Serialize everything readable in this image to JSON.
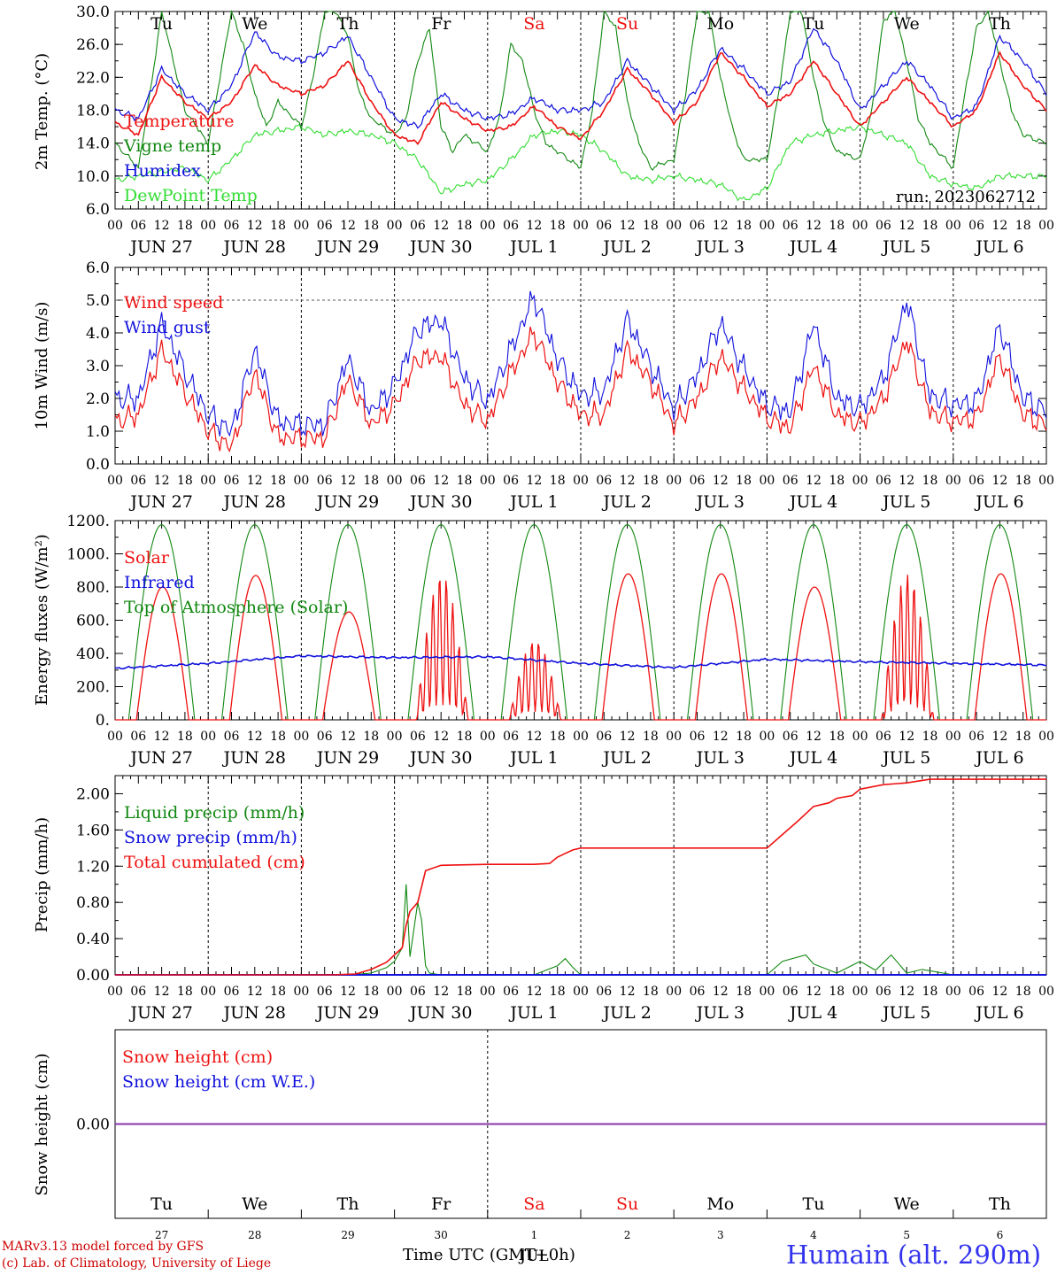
{
  "colors": {
    "red": "#ee1111",
    "green": "#118811",
    "blue": "#1111dd",
    "lightgreen": "#33dd33",
    "purple": "#8833aa",
    "axis": "#000000"
  },
  "days": {
    "dates": [
      "JUN 27",
      "JUN 28",
      "JUN 29",
      "JUN 30",
      "JUL  1",
      "JUL  2",
      "JUL  3",
      "JUL  4",
      "JUL  5",
      "JUL  6"
    ],
    "weekdays": [
      "Tu",
      "We",
      "Th",
      "Fr",
      "Sa",
      "Su",
      "Mo",
      "Tu",
      "We",
      "Th"
    ],
    "weekend_flags": [
      false,
      false,
      false,
      false,
      true,
      true,
      false,
      false,
      false,
      false
    ],
    "hour_labels": [
      "00",
      "06",
      "12",
      "18"
    ],
    "final_hour_label": "00",
    "day_numbers": [
      "27",
      "28",
      "29",
      "30",
      "1",
      "2",
      "3",
      "4",
      "5",
      "6"
    ],
    "month_label": "JUL"
  },
  "chart_data": [
    {
      "type": "line",
      "ylabel": "2m Temp. (°C)",
      "ylim": [
        6,
        30
      ],
      "yticks": [
        "6.0",
        "10.0",
        "14.0",
        "18.0",
        "22.0",
        "26.0",
        "30.0"
      ],
      "x_unit": "hours since JUN 27 00 UTC",
      "series_labels": [
        "Temperature",
        "Vigne temp",
        "Humidex",
        "DewPoint Temp"
      ],
      "annotation": "run: 2023062712",
      "series": [
        {
          "name": "Temperature",
          "color": "red",
          "x": [
            0,
            6,
            12,
            18,
            24,
            30,
            36,
            42,
            48,
            54,
            60,
            66,
            72,
            78,
            84,
            90,
            96,
            102,
            108,
            114,
            120,
            126,
            132,
            138,
            144,
            150,
            156,
            162,
            168,
            174,
            180,
            186,
            192,
            198,
            204,
            210,
            216,
            222,
            228,
            234,
            240
          ],
          "values": [
            16.5,
            15,
            22,
            19,
            17,
            19,
            23.5,
            21,
            20,
            21,
            24,
            19,
            15,
            14,
            19,
            17,
            15.5,
            16,
            18.5,
            16,
            14.5,
            18,
            23,
            20,
            16.5,
            19,
            25,
            22,
            18.5,
            20,
            24,
            20,
            16,
            19,
            22,
            19,
            16,
            18,
            25,
            21,
            18
          ]
        },
        {
          "name": "Vigne temp",
          "color": "green",
          "x": [
            0,
            6,
            9,
            12,
            15,
            18,
            24,
            27,
            30,
            33,
            36,
            39,
            42,
            48,
            51,
            54,
            57,
            60,
            63,
            66,
            72,
            75,
            78,
            81,
            84,
            87,
            90,
            96,
            99,
            102,
            105,
            108,
            111,
            114,
            120,
            123,
            126,
            129,
            132,
            135,
            138,
            144,
            147,
            150,
            153,
            156,
            159,
            162,
            168,
            171,
            174,
            177,
            180,
            183,
            186,
            192,
            195,
            198,
            201,
            204,
            207,
            210,
            216,
            219,
            222,
            225,
            228,
            231,
            234,
            240
          ],
          "values": [
            14,
            11,
            20,
            30,
            24,
            18,
            14,
            22,
            30,
            26,
            20,
            16,
            19,
            16,
            22,
            30,
            30,
            27,
            20,
            17,
            15,
            17,
            24,
            28,
            16,
            13,
            15,
            13,
            17,
            26,
            24,
            18,
            14,
            13,
            11,
            18,
            30,
            28,
            19,
            14,
            11,
            12,
            20,
            30,
            30,
            22,
            16,
            12,
            12,
            20,
            30,
            30,
            22,
            16,
            13,
            12,
            18,
            29,
            30,
            24,
            17,
            14,
            11,
            20,
            28,
            30,
            24,
            18,
            15,
            14
          ]
        },
        {
          "name": "Humidex",
          "color": "blue",
          "x": [
            0,
            6,
            12,
            18,
            24,
            30,
            36,
            42,
            48,
            54,
            60,
            66,
            72,
            78,
            84,
            90,
            96,
            102,
            108,
            114,
            120,
            126,
            132,
            138,
            144,
            150,
            156,
            162,
            168,
            174,
            180,
            186,
            192,
            198,
            204,
            210,
            216,
            222,
            228,
            234,
            240
          ],
          "values": [
            18,
            17,
            23,
            20,
            18,
            21,
            27.5,
            24.5,
            24,
            25,
            27,
            22,
            17,
            16,
            20,
            18,
            17,
            17.5,
            19.5,
            18,
            18,
            19,
            24,
            21,
            18,
            20.5,
            25.5,
            23,
            20,
            21.5,
            28,
            24,
            18,
            21,
            24,
            21,
            17,
            18.5,
            27,
            24,
            20
          ]
        },
        {
          "name": "DewPoint Temp",
          "color": "lightgreen",
          "x": [
            0,
            6,
            12,
            18,
            24,
            30,
            36,
            42,
            48,
            54,
            60,
            66,
            72,
            78,
            84,
            90,
            96,
            102,
            108,
            114,
            120,
            126,
            132,
            138,
            144,
            150,
            156,
            162,
            168,
            174,
            180,
            186,
            192,
            198,
            204,
            210,
            216,
            222,
            228,
            234,
            240
          ],
          "values": [
            9.5,
            10,
            10.5,
            11,
            9.5,
            12,
            15,
            15.5,
            16,
            15,
            15.5,
            15,
            14,
            12,
            8,
            9,
            9.5,
            12,
            15,
            15.5,
            15,
            13,
            10,
            9.5,
            10,
            9.5,
            9,
            7,
            8.5,
            14,
            15,
            15.5,
            16,
            15,
            14,
            10,
            9,
            8.5,
            10,
            10,
            10
          ]
        }
      ]
    },
    {
      "type": "line",
      "ylabel": "10m Wind (m/s)",
      "ylim": [
        0,
        6
      ],
      "yticks": [
        "0.0",
        "1.0",
        "2.0",
        "3.0",
        "4.0",
        "5.0",
        "6.0"
      ],
      "reference_line": 5,
      "series_labels": [
        "Wind speed",
        "Wind gust"
      ],
      "series": [
        {
          "name": "Wind speed",
          "color": "red",
          "x": [
            0,
            6,
            12,
            18,
            24,
            30,
            36,
            42,
            48,
            54,
            60,
            66,
            72,
            78,
            84,
            90,
            96,
            102,
            108,
            114,
            120,
            126,
            132,
            138,
            144,
            150,
            156,
            162,
            168,
            174,
            180,
            186,
            192,
            198,
            204,
            210,
            216,
            222,
            228,
            234,
            240
          ],
          "values": [
            1.3,
            1.5,
            3.5,
            2.2,
            1.0,
            0.5,
            2.8,
            0.8,
            0.8,
            0.8,
            2.6,
            1.2,
            1.8,
            3.2,
            3.3,
            1.8,
            1.3,
            2.8,
            4.0,
            2.5,
            1.5,
            1.5,
            3.5,
            2.5,
            1.2,
            2.0,
            3.3,
            2.3,
            1.4,
            1.1,
            3.0,
            1.5,
            1.2,
            2.0,
            3.8,
            1.6,
            1.3,
            1.4,
            3.3,
            1.5,
            1.2
          ]
        },
        {
          "name": "Wind gust",
          "color": "blue",
          "x": [
            0,
            6,
            12,
            18,
            24,
            30,
            36,
            42,
            48,
            54,
            60,
            66,
            72,
            78,
            84,
            90,
            96,
            102,
            108,
            114,
            120,
            126,
            132,
            138,
            144,
            150,
            156,
            162,
            168,
            174,
            180,
            186,
            192,
            198,
            204,
            210,
            216,
            222,
            228,
            234,
            240
          ],
          "values": [
            2.0,
            2.0,
            4.3,
            2.8,
            1.5,
            1.0,
            3.5,
            1.3,
            1.2,
            1.2,
            3.2,
            1.6,
            2.4,
            4.1,
            4.4,
            2.6,
            1.9,
            3.5,
            5.1,
            3.2,
            2.1,
            2.2,
            4.4,
            3.0,
            1.7,
            2.7,
            4.3,
            2.9,
            1.8,
            1.6,
            4.3,
            2.0,
            1.7,
            2.6,
            5.0,
            2.1,
            1.8,
            1.9,
            4.2,
            2.0,
            1.6
          ]
        }
      ]
    },
    {
      "type": "line",
      "ylabel": "Energy fluxes (W/m²)",
      "ylim": [
        0,
        1200
      ],
      "yticks": [
        "0.",
        "200.",
        "400.",
        "600.",
        "800.",
        "1000.",
        "1200."
      ],
      "series_labels": [
        "Solar",
        "Infrared",
        "Top of Atmosphere (Solar)"
      ],
      "toa_daily_peak": 1175,
      "sunrise_hour": 4.5,
      "sunset_hour": 19.5,
      "series": [
        {
          "name": "Solar",
          "color": "red",
          "daily_peaks": [
            800,
            870,
            650,
            880,
            480,
            880,
            880,
            800,
            880,
            880
          ]
        },
        {
          "name": "Infrared",
          "color": "blue",
          "x": [
            0,
            24,
            48,
            72,
            96,
            120,
            144,
            168,
            192,
            216,
            240
          ],
          "values": [
            310,
            340,
            385,
            375,
            380,
            340,
            315,
            365,
            350,
            340,
            330
          ]
        },
        {
          "name": "Top of Atmosphere (Solar)",
          "color": "green",
          "daily_peaks": [
            1175,
            1175,
            1175,
            1175,
            1175,
            1175,
            1175,
            1175,
            1175,
            1175
          ]
        }
      ]
    },
    {
      "type": "line",
      "ylabel": "Precip (mm/h)",
      "ylim": [
        0,
        2.2
      ],
      "yticks": [
        "0.00",
        "0.40",
        "0.80",
        "1.20",
        "1.60",
        "2.00"
      ],
      "series_labels": [
        "Liquid precip (mm/h)",
        "Snow precip (mm/h)",
        "Total cumulated (cm)"
      ],
      "series": [
        {
          "name": "Liquid precip (mm/h)",
          "color": "green",
          "x": [
            0,
            60,
            66,
            70,
            72,
            74,
            75,
            76,
            77,
            78,
            79,
            80,
            81,
            84,
            96,
            108,
            114,
            116,
            118,
            120,
            168,
            172,
            178,
            180,
            186,
            192,
            196,
            200,
            204,
            208,
            216,
            240
          ],
          "values": [
            0,
            0,
            0.02,
            0.08,
            0.15,
            0.3,
            1.0,
            0.2,
            0.5,
            0.8,
            0.6,
            0.1,
            0.02,
            0,
            0,
            0,
            0.1,
            0.18,
            0.08,
            0,
            0,
            0.15,
            0.22,
            0.12,
            0.02,
            0.15,
            0.05,
            0.22,
            0.02,
            0.06,
            0,
            0
          ]
        },
        {
          "name": "Snow precip (mm/h)",
          "color": "blue",
          "x": [
            0,
            240
          ],
          "values": [
            0,
            0
          ]
        },
        {
          "name": "Total cumulated (cm)",
          "color": "red",
          "x": [
            0,
            56,
            62,
            66,
            70,
            72,
            74,
            75,
            76,
            78,
            80,
            84,
            96,
            108,
            112,
            114,
            118,
            120,
            160,
            168,
            172,
            176,
            180,
            184,
            186,
            190,
            192,
            198,
            204,
            210,
            240
          ],
          "values": [
            0,
            0,
            0.01,
            0.06,
            0.14,
            0.22,
            0.3,
            0.55,
            0.7,
            0.8,
            1.15,
            1.21,
            1.22,
            1.22,
            1.23,
            1.3,
            1.38,
            1.4,
            1.4,
            1.4,
            1.55,
            1.7,
            1.86,
            1.9,
            1.95,
            1.98,
            2.05,
            2.1,
            2.12,
            2.16,
            2.16
          ]
        }
      ]
    },
    {
      "type": "line",
      "ylabel": "Snow height (cm)",
      "yticks": [
        "0.00"
      ],
      "series_labels": [
        "Snow height (cm)",
        "Snow height (cm W.E.)"
      ],
      "series": [
        {
          "name": "Snow height (cm)",
          "color": "red",
          "x": [
            0,
            240
          ],
          "values": [
            0,
            0
          ]
        },
        {
          "name": "Snow height (cm W.E.)",
          "color": "blue",
          "x": [
            0,
            240
          ],
          "values": [
            0,
            0
          ]
        }
      ]
    }
  ],
  "footer": {
    "xlabel": "Time UTC (GMT+0h)",
    "credit_line1": "MARv3.13 model forced by GFS",
    "credit_line2": "(c) Lab. of Climatology, University of Liege",
    "station": "Humain (alt. 290m)"
  }
}
